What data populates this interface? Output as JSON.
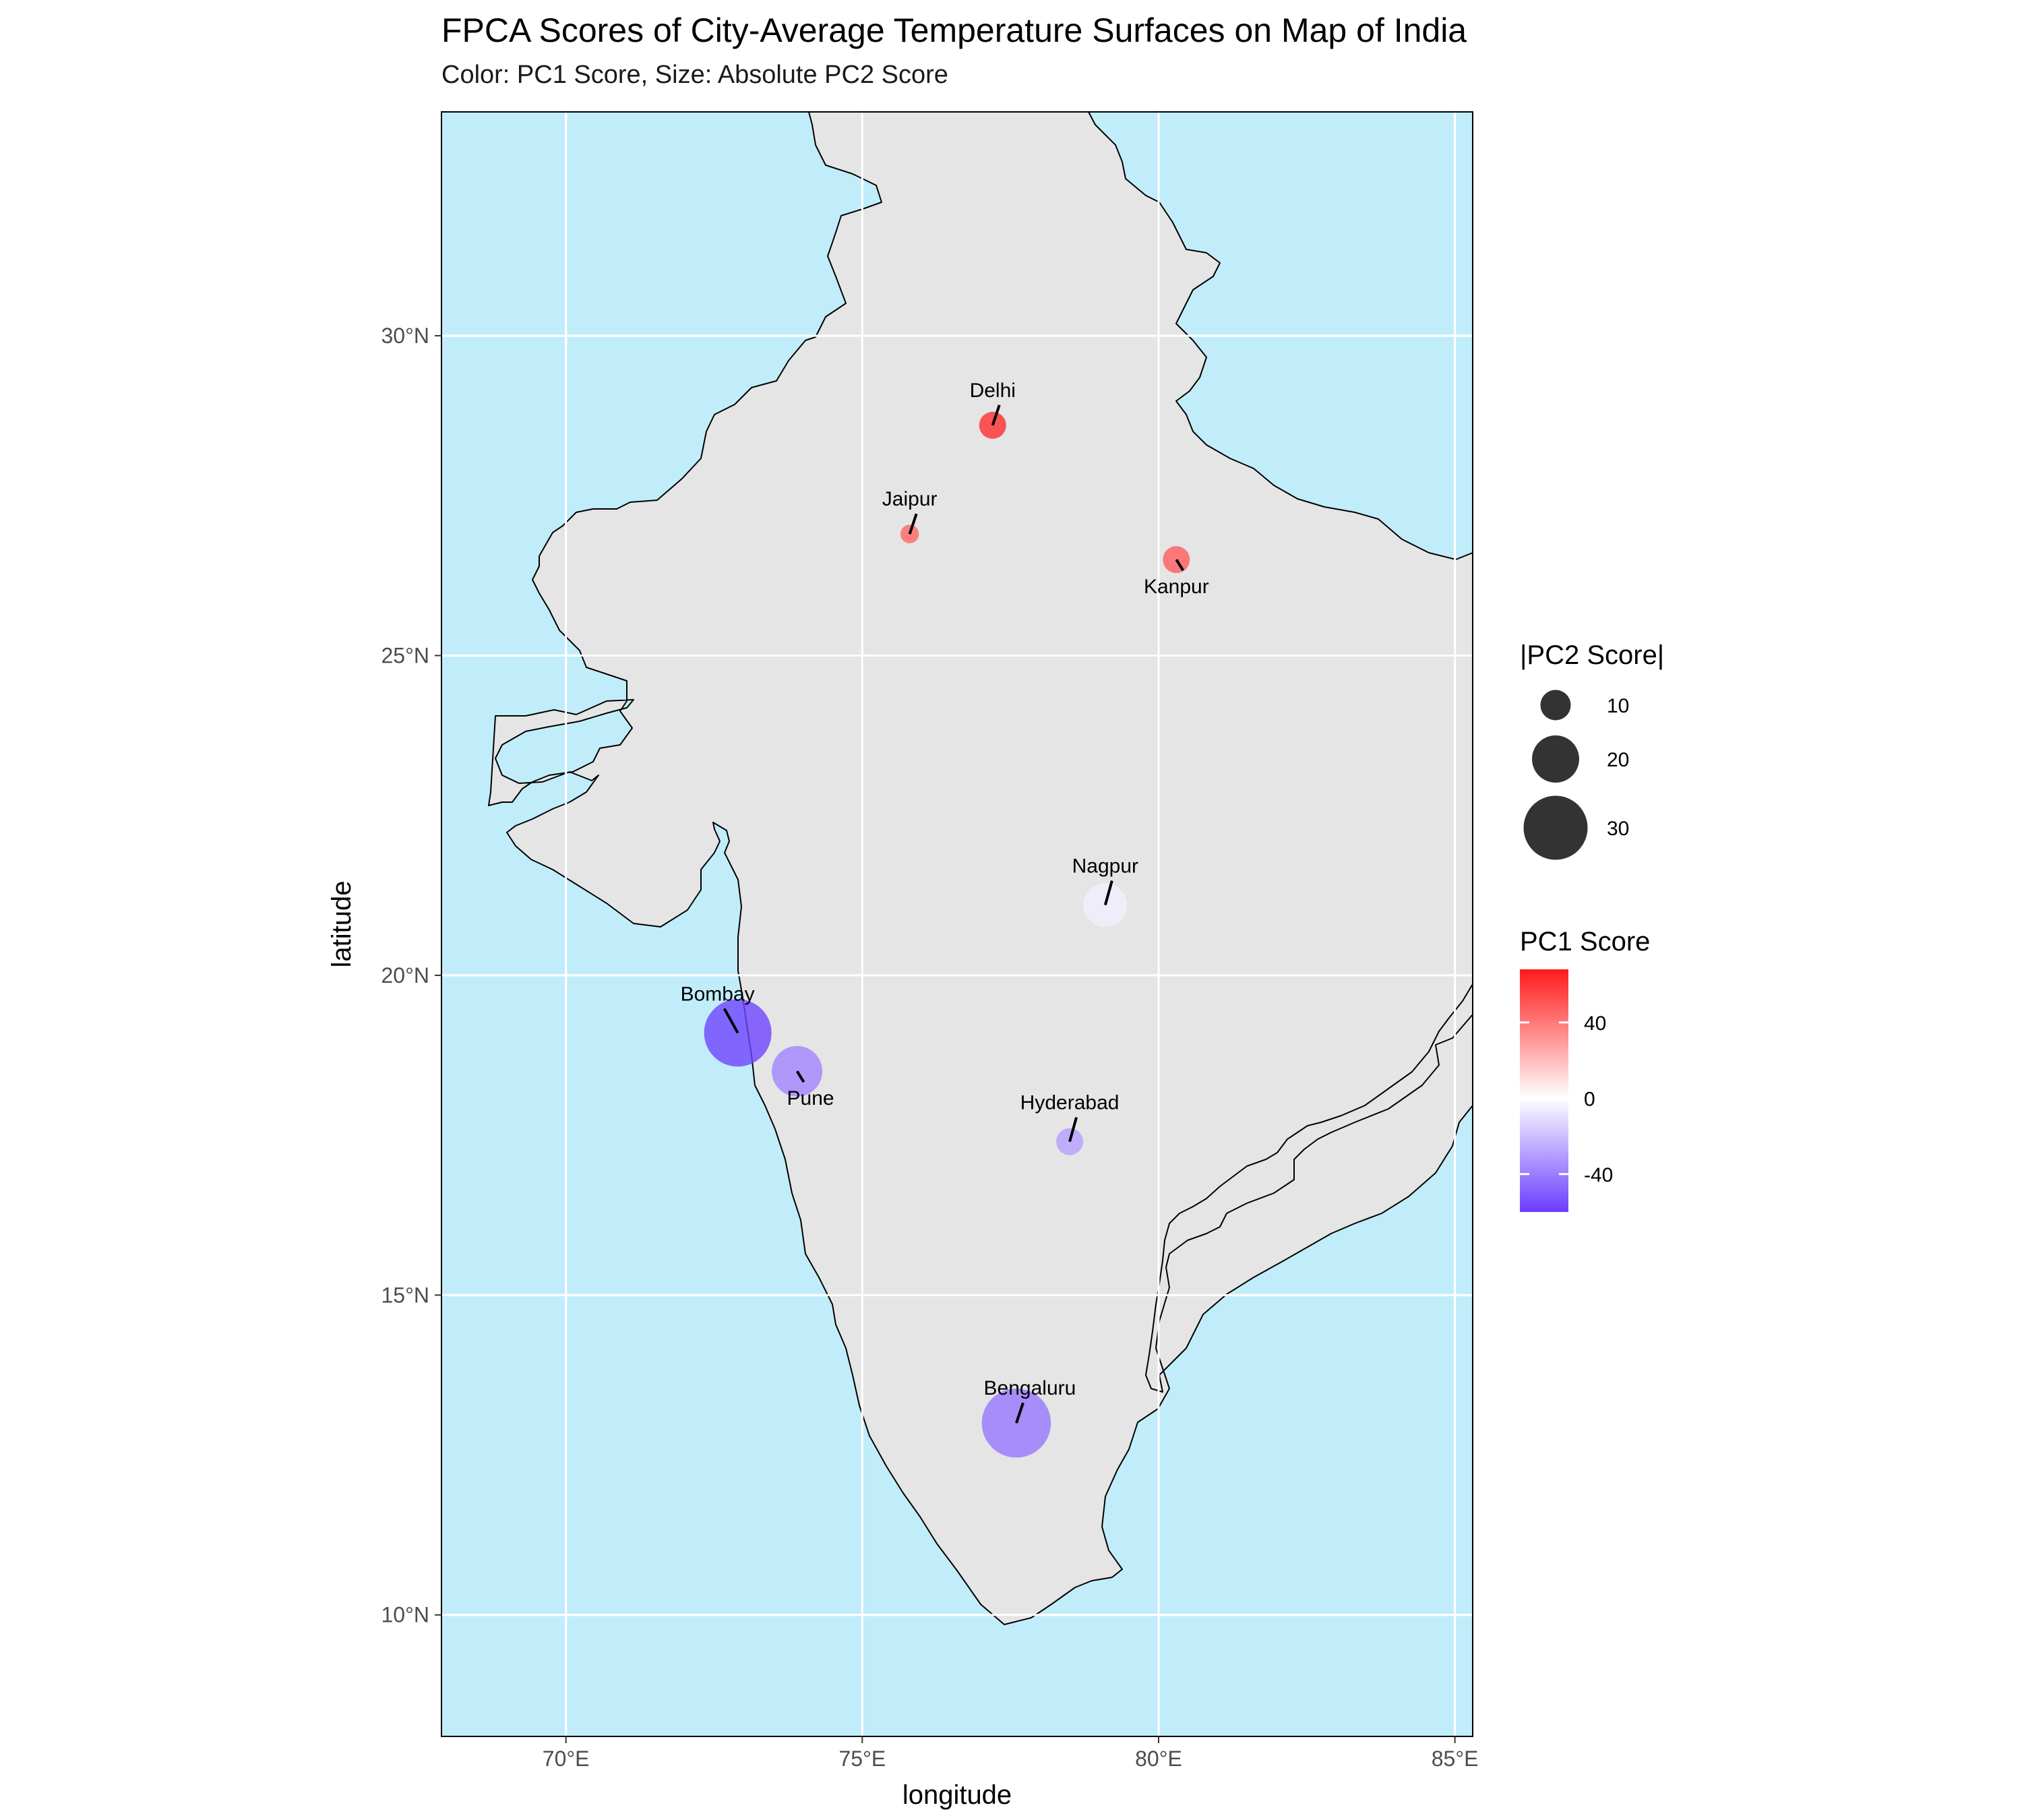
{
  "title": "FPCA Scores of City-Average Temperature Surfaces on Map of India",
  "subtitle": "Color: PC1 Score, Size: Absolute PC2 Score",
  "chart_data": {
    "type": "scatter",
    "xlabel": "longitude",
    "ylabel": "latitude",
    "xlim": [
      67.9,
      85.3
    ],
    "ylim": [
      8.1,
      33.5
    ],
    "x_ticks": [
      70,
      75,
      80,
      85
    ],
    "y_ticks": [
      10,
      15,
      20,
      25,
      30
    ],
    "x_tick_labels": [
      "70°E",
      "75°E",
      "80°E",
      "85°E"
    ],
    "y_tick_labels": [
      "10°N",
      "15°N",
      "20°N",
      "25°N",
      "30°N"
    ],
    "grid": true,
    "colors": {
      "water": "#c1edfb",
      "land": "#e5e5e5",
      "border": "#000000",
      "grid": "#ffffff",
      "pc1_low": "#6a3dff",
      "pc1_mid": "#ffffff",
      "pc1_high": "#ff1a1a"
    },
    "points": [
      {
        "city": "Delhi",
        "lon": 77.2,
        "lat": 28.6,
        "pc1": 62,
        "pc2_abs": 8
      },
      {
        "city": "Jaipur",
        "lon": 75.8,
        "lat": 26.9,
        "pc1": 45,
        "pc2_abs": 3
      },
      {
        "city": "Kanpur",
        "lon": 80.3,
        "lat": 26.5,
        "pc1": 48,
        "pc2_abs": 8
      },
      {
        "city": "Nagpur",
        "lon": 79.1,
        "lat": 21.1,
        "pc1": -5,
        "pc2_abs": 18
      },
      {
        "city": "Bombay",
        "lon": 72.9,
        "lat": 19.1,
        "pc1": -58,
        "pc2_abs": 32
      },
      {
        "city": "Pune",
        "lon": 73.9,
        "lat": 18.5,
        "pc1": -38,
        "pc2_abs": 22
      },
      {
        "city": "Hyderabad",
        "lon": 78.5,
        "lat": 17.4,
        "pc1": -30,
        "pc2_abs": 8
      },
      {
        "city": "Bengaluru",
        "lon": 77.6,
        "lat": 13.0,
        "pc1": -42,
        "pc2_abs": 33
      }
    ],
    "legend_size": {
      "title": "|PC2 Score|",
      "values": [
        10,
        20,
        30
      ],
      "labels": [
        "10",
        "20",
        "30"
      ],
      "placement": "right"
    },
    "legend_color": {
      "title": "PC1 Score",
      "range": [
        -60,
        68
      ],
      "ticks": [
        40,
        0,
        -40
      ],
      "labels": [
        "40",
        "0",
        "-40"
      ],
      "placement": "right"
    }
  }
}
